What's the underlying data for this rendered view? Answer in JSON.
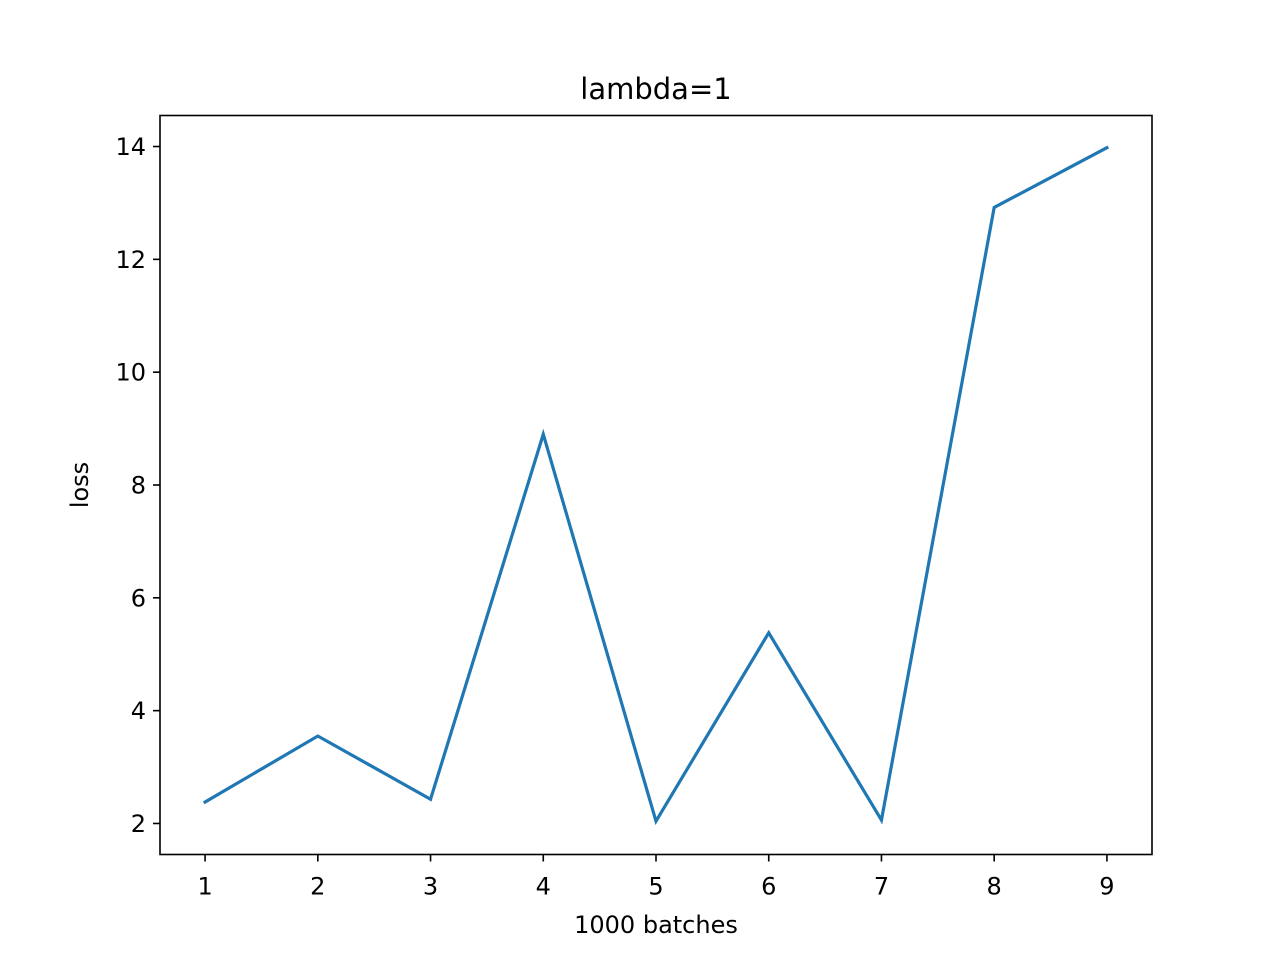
{
  "chart_data": {
    "type": "line",
    "title": "lambda=1",
    "xlabel": "1000 batches",
    "ylabel": "loss",
    "x": [
      1,
      2,
      3,
      4,
      5,
      6,
      7,
      8,
      9
    ],
    "x_ticks": [
      "1",
      "2",
      "3",
      "4",
      "5",
      "6",
      "7",
      "8",
      "9"
    ],
    "y_ticks": [
      "2",
      "4",
      "6",
      "8",
      "10",
      "12",
      "14"
    ],
    "xlim": [
      0.6,
      9.4
    ],
    "ylim": [
      1.45,
      14.55
    ],
    "grid": false,
    "series": [
      {
        "values": [
          2.38,
          3.55,
          2.43,
          8.9,
          2.04,
          5.38,
          2.06,
          12.92,
          13.98
        ],
        "color": "#1f77b4"
      }
    ]
  }
}
